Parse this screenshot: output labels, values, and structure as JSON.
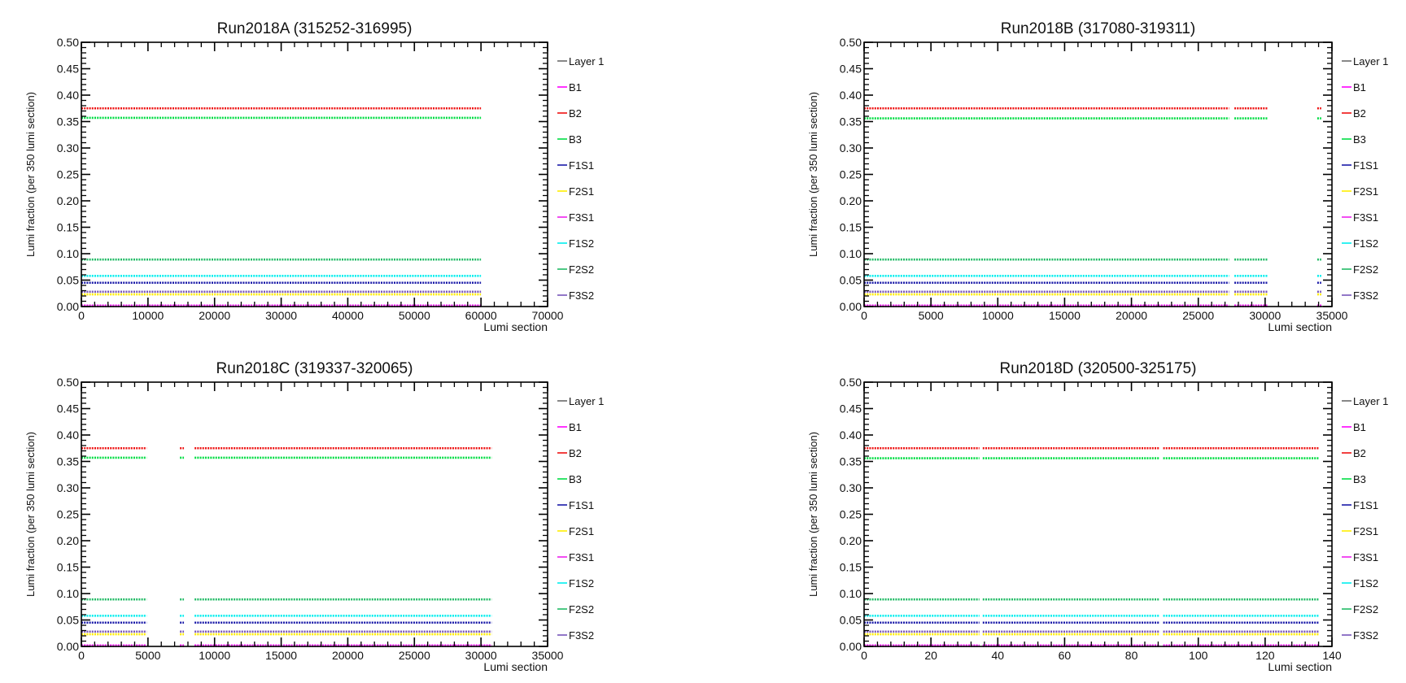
{
  "chart_data": [
    {
      "type": "scatter",
      "title": "Run2018A (315252-316995)",
      "xlabel": "Lumi section",
      "ylabel": "Lumi fraction (per 350 lumi section)",
      "xlim": [
        0,
        70000
      ],
      "ylim": [
        0,
        0.5
      ],
      "x_ticks": [
        0,
        10000,
        20000,
        30000,
        40000,
        50000,
        60000,
        70000
      ],
      "x_tick_labels": [
        "0",
        "10000",
        "20000",
        "30000",
        "40000",
        "50000",
        "60000",
        "70000"
      ],
      "y_ticks": [
        0,
        0.05,
        0.1,
        0.15,
        0.2,
        0.25,
        0.3,
        0.35,
        0.4,
        0.45,
        0.5
      ],
      "y_tick_labels": [
        "0.00",
        "0.05",
        "0.10",
        "0.15",
        "0.20",
        "0.25",
        "0.30",
        "0.35",
        "0.40",
        "0.45",
        "0.50"
      ],
      "legend": "right",
      "grid": false,
      "segments": [
        [
          0,
          60000
        ]
      ],
      "series": [
        {
          "name": "Layer 1",
          "color": "#6a6a6a",
          "value": 0.0
        },
        {
          "name": "B1",
          "color": "#ff00ff",
          "value": 0.001
        },
        {
          "name": "B2",
          "color": "#ee1111",
          "value": 0.375
        },
        {
          "name": "B3",
          "color": "#00dd44",
          "value": 0.357
        },
        {
          "name": "F1S1",
          "color": "#1a1aa8",
          "value": 0.045
        },
        {
          "name": "F2S1",
          "color": "#ffee00",
          "value": 0.023
        },
        {
          "name": "F3S1",
          "color": "#ee22ee",
          "value": 0.002
        },
        {
          "name": "F1S2",
          "color": "#00eeee",
          "value": 0.058
        },
        {
          "name": "F2S2",
          "color": "#22bb66",
          "value": 0.089
        },
        {
          "name": "F3S2",
          "color": "#7755bb",
          "value": 0.028
        }
      ]
    },
    {
      "type": "scatter",
      "title": "Run2018B (317080-319311)",
      "xlabel": "Lumi section",
      "ylabel": "Lumi fraction (per 350 lumi section)",
      "xlim": [
        0,
        35000
      ],
      "ylim": [
        0,
        0.5
      ],
      "x_ticks": [
        0,
        5000,
        10000,
        15000,
        20000,
        25000,
        30000,
        35000
      ],
      "x_tick_labels": [
        "0",
        "5000",
        "10000",
        "15000",
        "20000",
        "25000",
        "30000",
        "35000"
      ],
      "y_ticks": [
        0,
        0.05,
        0.1,
        0.15,
        0.2,
        0.25,
        0.3,
        0.35,
        0.4,
        0.45,
        0.5
      ],
      "y_tick_labels": [
        "0.00",
        "0.05",
        "0.10",
        "0.15",
        "0.20",
        "0.25",
        "0.30",
        "0.35",
        "0.40",
        "0.45",
        "0.50"
      ],
      "legend": "right",
      "grid": false,
      "segments": [
        [
          0,
          27300
        ],
        [
          27700,
          30200
        ],
        [
          33900,
          34200
        ]
      ],
      "series": [
        {
          "name": "Layer 1",
          "color": "#6a6a6a",
          "value": 0.0
        },
        {
          "name": "B1",
          "color": "#ff00ff",
          "value": 0.001
        },
        {
          "name": "B2",
          "color": "#ee1111",
          "value": 0.375
        },
        {
          "name": "B3",
          "color": "#00dd44",
          "value": 0.356
        },
        {
          "name": "F1S1",
          "color": "#1a1aa8",
          "value": 0.045
        },
        {
          "name": "F2S1",
          "color": "#ffee00",
          "value": 0.023
        },
        {
          "name": "F3S1",
          "color": "#ee22ee",
          "value": 0.002
        },
        {
          "name": "F1S2",
          "color": "#00eeee",
          "value": 0.058
        },
        {
          "name": "F2S2",
          "color": "#22bb66",
          "value": 0.089
        },
        {
          "name": "F3S2",
          "color": "#7755bb",
          "value": 0.028
        }
      ]
    },
    {
      "type": "scatter",
      "title": "Run2018C (319337-320065)",
      "xlabel": "Lumi section",
      "ylabel": "Lumi fraction (per 350 lumi section)",
      "xlim": [
        0,
        35000
      ],
      "ylim": [
        0,
        0.5
      ],
      "x_ticks": [
        0,
        5000,
        10000,
        15000,
        20000,
        25000,
        30000,
        35000
      ],
      "x_tick_labels": [
        "0",
        "5000",
        "10000",
        "15000",
        "20000",
        "25000",
        "30000",
        "35000"
      ],
      "y_ticks": [
        0,
        0.05,
        0.1,
        0.15,
        0.2,
        0.25,
        0.3,
        0.35,
        0.4,
        0.45,
        0.5
      ],
      "y_tick_labels": [
        "0.00",
        "0.05",
        "0.10",
        "0.15",
        "0.20",
        "0.25",
        "0.30",
        "0.35",
        "0.40",
        "0.45",
        "0.50"
      ],
      "legend": "right",
      "grid": false,
      "segments": [
        [
          0,
          4900
        ],
        [
          7400,
          7700
        ],
        [
          8500,
          30800
        ]
      ],
      "series": [
        {
          "name": "Layer 1",
          "color": "#6a6a6a",
          "value": 0.0
        },
        {
          "name": "B1",
          "color": "#ff00ff",
          "value": 0.001
        },
        {
          "name": "B2",
          "color": "#ee1111",
          "value": 0.375
        },
        {
          "name": "B3",
          "color": "#00dd44",
          "value": 0.357
        },
        {
          "name": "F1S1",
          "color": "#1a1aa8",
          "value": 0.045
        },
        {
          "name": "F2S1",
          "color": "#ffee00",
          "value": 0.023
        },
        {
          "name": "F3S1",
          "color": "#ee22ee",
          "value": 0.002
        },
        {
          "name": "F1S2",
          "color": "#00eeee",
          "value": 0.058
        },
        {
          "name": "F2S2",
          "color": "#22bb66",
          "value": 0.089
        },
        {
          "name": "F3S2",
          "color": "#7755bb",
          "value": 0.028
        }
      ]
    },
    {
      "type": "scatter",
      "title": "Run2018D (320500-325175)",
      "xlabel": "Lumi section",
      "ylabel": "Lumi fraction (per 350 lumi section)",
      "xlim": [
        0,
        140
      ],
      "ylim": [
        0,
        0.5
      ],
      "x_ticks": [
        0,
        20,
        40,
        60,
        80,
        100,
        120,
        140
      ],
      "x_tick_labels": [
        "0",
        "20",
        "40",
        "60",
        "80",
        "100",
        "120",
        "140"
      ],
      "y_ticks": [
        0,
        0.05,
        0.1,
        0.15,
        0.2,
        0.25,
        0.3,
        0.35,
        0.4,
        0.45,
        0.5
      ],
      "y_tick_labels": [
        "0.00",
        "0.05",
        "0.10",
        "0.15",
        "0.20",
        "0.25",
        "0.30",
        "0.35",
        "0.40",
        "0.45",
        "0.50"
      ],
      "legend": "right",
      "grid": false,
      "segments": [
        [
          0,
          34.5
        ],
        [
          35.5,
          88.5
        ],
        [
          89.5,
          136
        ]
      ],
      "series": [
        {
          "name": "Layer 1",
          "color": "#6a6a6a",
          "value": 0.0
        },
        {
          "name": "B1",
          "color": "#ff00ff",
          "value": 0.001
        },
        {
          "name": "B2",
          "color": "#ee1111",
          "value": 0.375
        },
        {
          "name": "B3",
          "color": "#00dd44",
          "value": 0.356
        },
        {
          "name": "F1S1",
          "color": "#1a1aa8",
          "value": 0.045
        },
        {
          "name": "F2S1",
          "color": "#ffee00",
          "value": 0.023
        },
        {
          "name": "F3S1",
          "color": "#ee22ee",
          "value": 0.002
        },
        {
          "name": "F1S2",
          "color": "#00eeee",
          "value": 0.058
        },
        {
          "name": "F2S2",
          "color": "#22bb66",
          "value": 0.089
        },
        {
          "name": "F3S2",
          "color": "#7755bb",
          "value": 0.028
        }
      ]
    }
  ]
}
